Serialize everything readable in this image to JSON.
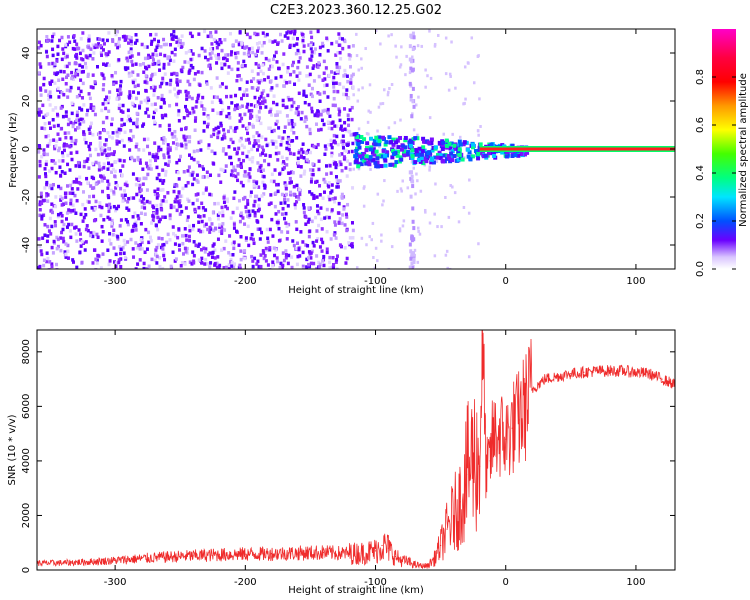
{
  "title": "C2E3.2023.360.12.25.G02",
  "colors": {
    "snr_line": "#ef2b2b",
    "spec_points": "#6f00ff",
    "colorbar": [
      "#ff00c8",
      "#ff0000",
      "#ffa500",
      "#ffff00",
      "#00ff00",
      "#00ffff",
      "#0000ff",
      "#c8b0ff",
      "#ffffff"
    ]
  },
  "chart_data": [
    {
      "type": "heatmap",
      "name": "spectrogram",
      "xlabel": "Height of straight line (km)",
      "ylabel": "Frequency (Hz)",
      "xlim": [
        -360,
        130
      ],
      "ylim": [
        -50,
        50
      ],
      "x_ticks": [
        -300,
        -200,
        -100,
        0,
        100
      ],
      "y_ticks": [
        -40,
        -20,
        0,
        20,
        40
      ],
      "features": {
        "noise_region_x": [
          -360,
          -118
        ],
        "sparse_region_x": [
          -118,
          -20
        ],
        "vertical_streak_x": -73,
        "signal_band_start_x": -118,
        "signal_line_x": [
          -20,
          130
        ],
        "signal_line_freq": 0
      },
      "colorbar": {
        "label": "Normalized spectral amplitude",
        "range": [
          0,
          1
        ],
        "ticks": [
          "0.0",
          "0.2",
          "0.4",
          "0.6",
          "0.8"
        ]
      },
      "grid": false
    },
    {
      "type": "line",
      "name": "snr",
      "xlabel": "Height of straight line (km)",
      "ylabel": "SNR (10 * v/v)",
      "xlim": [
        -360,
        130
      ],
      "ylim": [
        0,
        8800
      ],
      "x_ticks": [
        -300,
        -200,
        -100,
        0,
        100
      ],
      "y_ticks": [
        0,
        2000,
        4000,
        6000,
        8000
      ],
      "x": [
        -360,
        -340,
        -320,
        -300,
        -280,
        -260,
        -240,
        -220,
        -200,
        -180,
        -160,
        -140,
        -120,
        -110,
        -100,
        -95,
        -90,
        -85,
        -80,
        -75,
        -70,
        -65,
        -60,
        -55,
        -50,
        -45,
        -40,
        -35,
        -30,
        -25,
        -20,
        -18,
        -15,
        -12,
        -10,
        -5,
        0,
        5,
        10,
        15,
        20,
        25,
        30,
        40,
        50,
        60,
        70,
        80,
        90,
        100,
        110,
        120,
        130
      ],
      "y": [
        250,
        260,
        300,
        350,
        420,
        480,
        520,
        560,
        580,
        600,
        620,
        640,
        600,
        620,
        700,
        900,
        800,
        500,
        350,
        300,
        200,
        150,
        150,
        400,
        900,
        1500,
        2000,
        2500,
        3500,
        4200,
        3800,
        8600,
        3500,
        4000,
        4800,
        5000,
        4800,
        5200,
        5500,
        6000,
        6600,
        6800,
        7000,
        7100,
        7200,
        7250,
        7300,
        7300,
        7300,
        7250,
        7200,
        7000,
        6800
      ],
      "grid": false
    }
  ]
}
